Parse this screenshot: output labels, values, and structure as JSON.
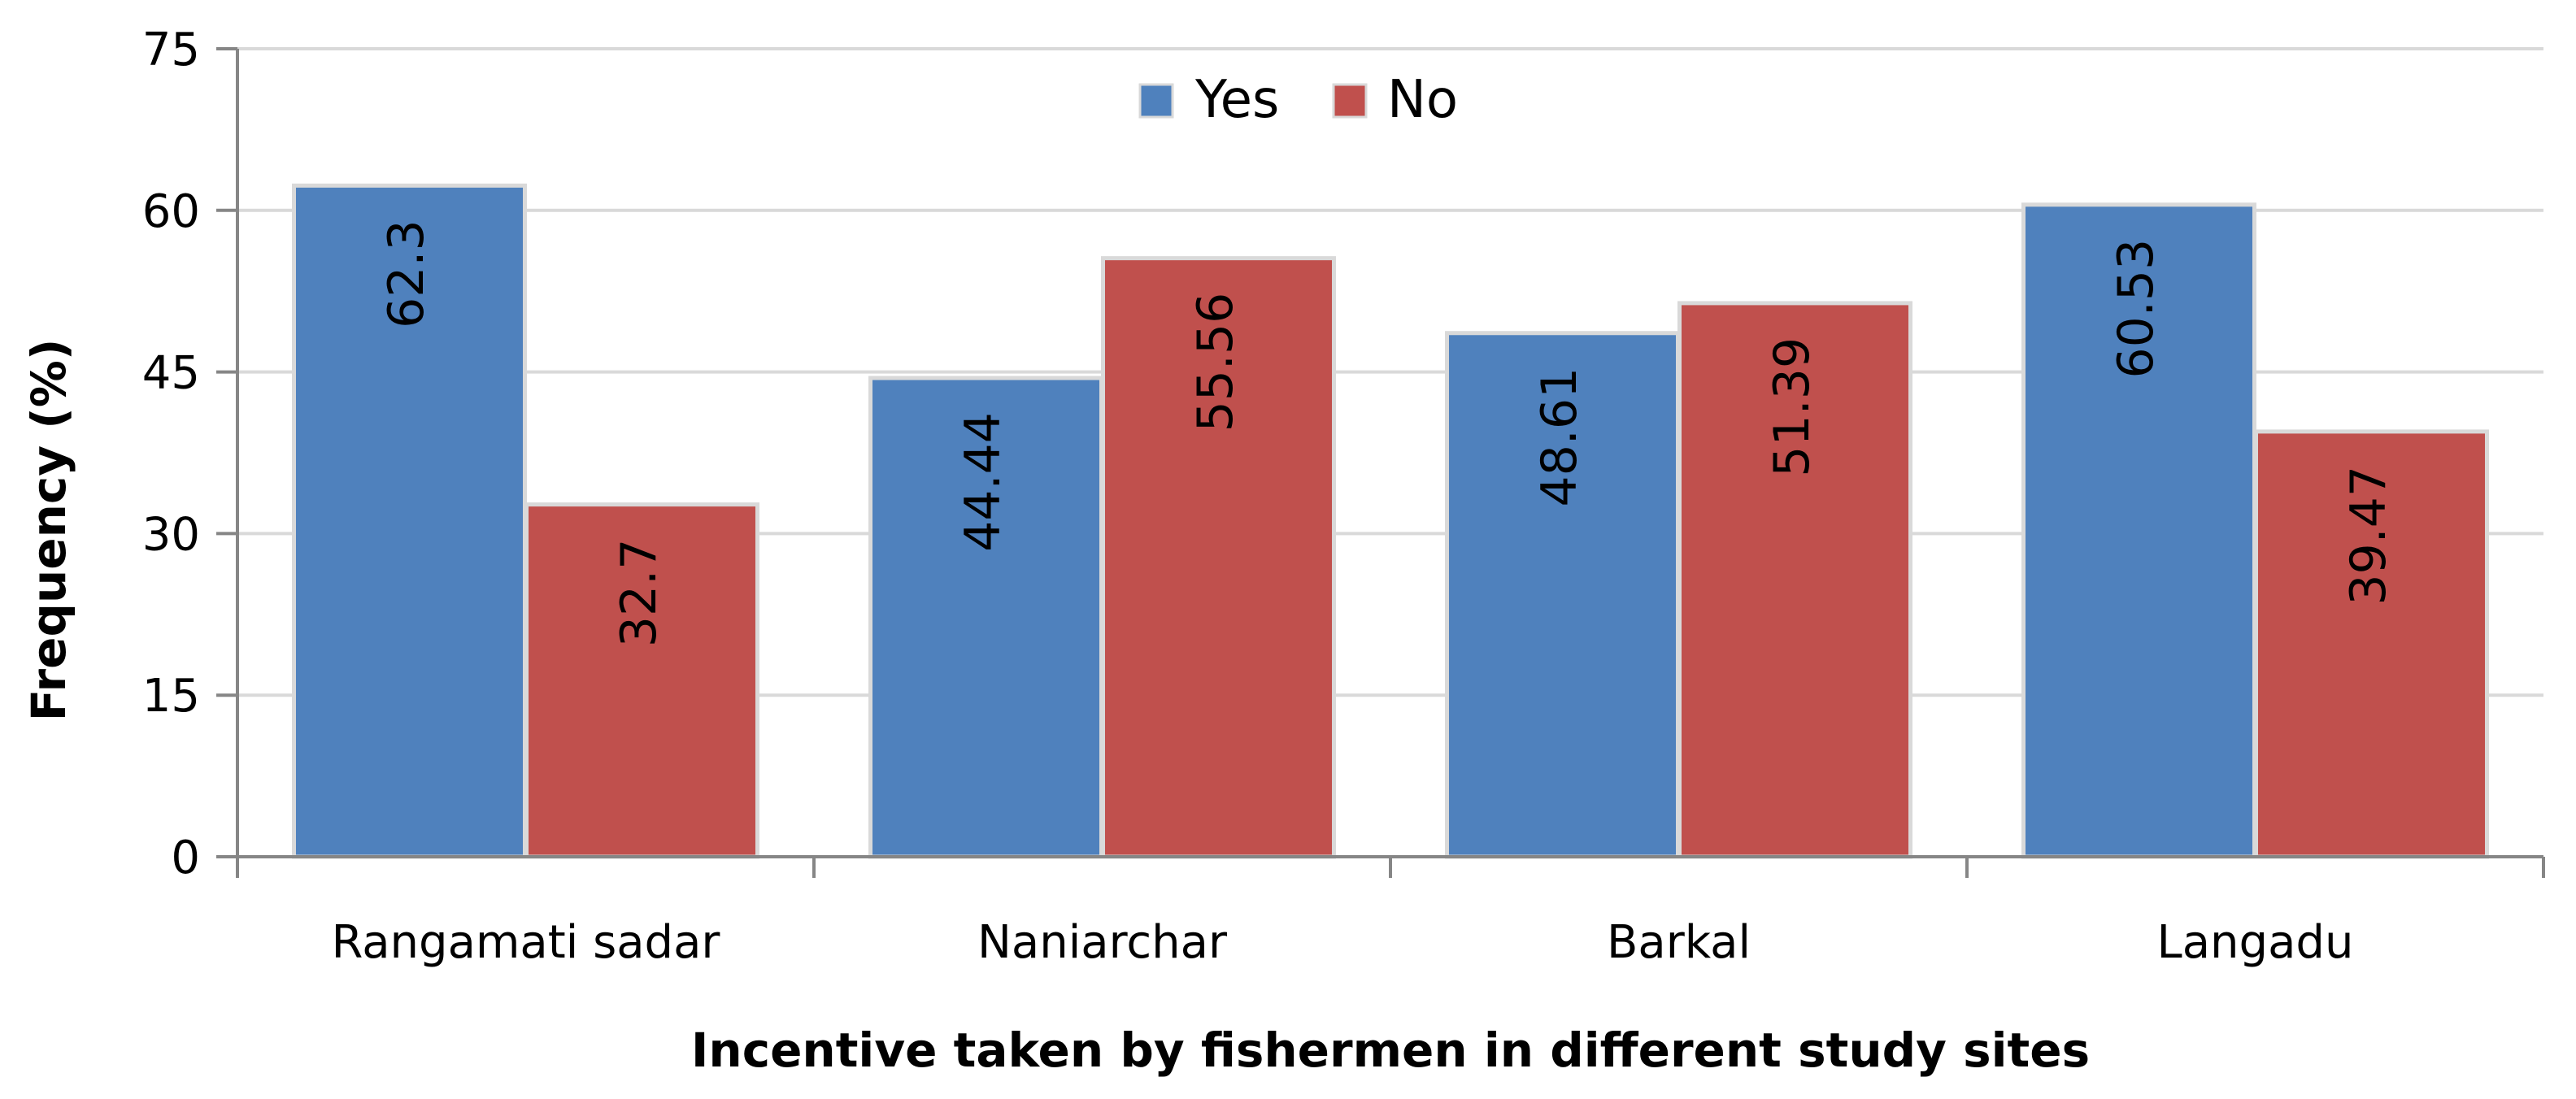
{
  "chart_data": {
    "type": "bar",
    "categories": [
      "Rangamati sadar",
      "Naniarchar",
      "Barkal",
      "Langadu"
    ],
    "series": [
      {
        "name": "Yes",
        "values": [
          62.3,
          44.44,
          48.61,
          60.53
        ],
        "color": "#4F81BD"
      },
      {
        "name": "No",
        "values": [
          32.7,
          55.56,
          51.39,
          39.47
        ],
        "color": "#C0504D"
      }
    ],
    "xlabel": "Incentive taken by fishermen in different study sites",
    "ylabel": "Frequency (%)",
    "ylim": [
      0,
      75
    ],
    "yticks": [
      0,
      15,
      30,
      45,
      60,
      75
    ],
    "grid": true,
    "legend_position": "top-center",
    "data_labels": true,
    "data_label_orientation": "vertical"
  }
}
